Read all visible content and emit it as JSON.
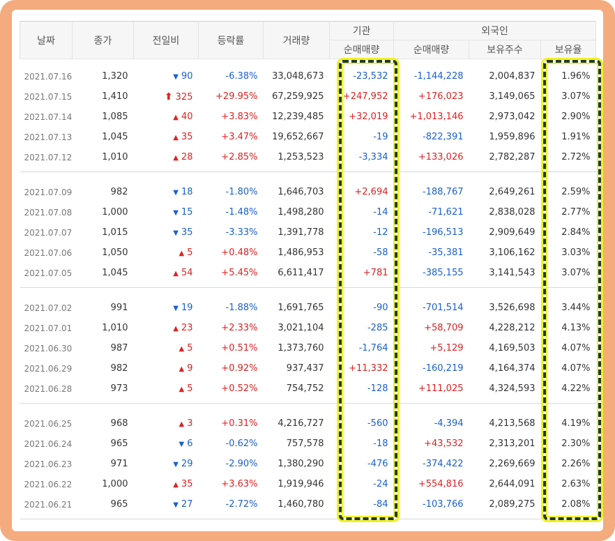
{
  "headers": {
    "date": "날짜",
    "close": "종가",
    "change": "전일비",
    "rate": "등락률",
    "volume": "거래량",
    "institution": "기관",
    "foreign": "외국인",
    "inst_net": "순매매량",
    "foreign_net": "순매매량",
    "foreign_shares": "보유주수",
    "foreign_ratio": "보유율"
  },
  "colors": {
    "up": "#e02020",
    "down": "#1a5fd0",
    "frame": "#f4ab7d",
    "highlight": "#f2f21a"
  },
  "groups": [
    [
      {
        "date": "2021.07.16",
        "close": "1,320",
        "dir": "down",
        "change": "90",
        "rate": "-6.38%",
        "volume": "33,048,673",
        "inst": "-23,532",
        "foreign_net": "-1,144,228",
        "shares": "2,004,837",
        "ratio": "1.96%"
      },
      {
        "date": "2021.07.15",
        "close": "1,410",
        "dir": "limit",
        "change": "325",
        "rate": "+29.95%",
        "volume": "67,259,925",
        "inst": "+247,952",
        "foreign_net": "+176,023",
        "shares": "3,149,065",
        "ratio": "3.07%"
      },
      {
        "date": "2021.07.14",
        "close": "1,085",
        "dir": "up",
        "change": "40",
        "rate": "+3.83%",
        "volume": "12,239,485",
        "inst": "+32,019",
        "foreign_net": "+1,013,146",
        "shares": "2,973,042",
        "ratio": "2.90%"
      },
      {
        "date": "2021.07.13",
        "close": "1,045",
        "dir": "up",
        "change": "35",
        "rate": "+3.47%",
        "volume": "19,652,667",
        "inst": "-19",
        "foreign_net": "-822,391",
        "shares": "1,959,896",
        "ratio": "1.91%"
      },
      {
        "date": "2021.07.12",
        "close": "1,010",
        "dir": "up",
        "change": "28",
        "rate": "+2.85%",
        "volume": "1,253,523",
        "inst": "-3,334",
        "foreign_net": "+133,026",
        "shares": "2,782,287",
        "ratio": "2.72%"
      }
    ],
    [
      {
        "date": "2021.07.09",
        "close": "982",
        "dir": "down",
        "change": "18",
        "rate": "-1.80%",
        "volume": "1,646,703",
        "inst": "+2,694",
        "foreign_net": "-188,767",
        "shares": "2,649,261",
        "ratio": "2.59%"
      },
      {
        "date": "2021.07.08",
        "close": "1,000",
        "dir": "down",
        "change": "15",
        "rate": "-1.48%",
        "volume": "1,498,280",
        "inst": "-14",
        "foreign_net": "-71,621",
        "shares": "2,838,028",
        "ratio": "2.77%"
      },
      {
        "date": "2021.07.07",
        "close": "1,015",
        "dir": "down",
        "change": "35",
        "rate": "-3.33%",
        "volume": "1,391,778",
        "inst": "-12",
        "foreign_net": "-196,513",
        "shares": "2,909,649",
        "ratio": "2.84%"
      },
      {
        "date": "2021.07.06",
        "close": "1,050",
        "dir": "up",
        "change": "5",
        "rate": "+0.48%",
        "volume": "1,486,953",
        "inst": "-58",
        "foreign_net": "-35,381",
        "shares": "3,106,162",
        "ratio": "3.03%"
      },
      {
        "date": "2021.07.05",
        "close": "1,045",
        "dir": "up",
        "change": "54",
        "rate": "+5.45%",
        "volume": "6,611,417",
        "inst": "+781",
        "foreign_net": "-385,155",
        "shares": "3,141,543",
        "ratio": "3.07%"
      }
    ],
    [
      {
        "date": "2021.07.02",
        "close": "991",
        "dir": "down",
        "change": "19",
        "rate": "-1.88%",
        "volume": "1,691,765",
        "inst": "-90",
        "foreign_net": "-701,514",
        "shares": "3,526,698",
        "ratio": "3.44%"
      },
      {
        "date": "2021.07.01",
        "close": "1,010",
        "dir": "up",
        "change": "23",
        "rate": "+2.33%",
        "volume": "3,021,104",
        "inst": "-285",
        "foreign_net": "+58,709",
        "shares": "4,228,212",
        "ratio": "4.13%"
      },
      {
        "date": "2021.06.30",
        "close": "987",
        "dir": "up",
        "change": "5",
        "rate": "+0.51%",
        "volume": "1,373,760",
        "inst": "-1,764",
        "foreign_net": "+5,129",
        "shares": "4,169,503",
        "ratio": "4.07%"
      },
      {
        "date": "2021.06.29",
        "close": "982",
        "dir": "up",
        "change": "9",
        "rate": "+0.92%",
        "volume": "937,437",
        "inst": "+11,332",
        "foreign_net": "-160,219",
        "shares": "4,164,374",
        "ratio": "4.07%"
      },
      {
        "date": "2021.06.28",
        "close": "973",
        "dir": "up",
        "change": "5",
        "rate": "+0.52%",
        "volume": "754,752",
        "inst": "-128",
        "foreign_net": "+111,025",
        "shares": "4,324,593",
        "ratio": "4.22%"
      }
    ],
    [
      {
        "date": "2021.06.25",
        "close": "968",
        "dir": "up",
        "change": "3",
        "rate": "+0.31%",
        "volume": "4,216,727",
        "inst": "-560",
        "foreign_net": "-4,394",
        "shares": "4,213,568",
        "ratio": "4.19%"
      },
      {
        "date": "2021.06.24",
        "close": "965",
        "dir": "down",
        "change": "6",
        "rate": "-0.62%",
        "volume": "757,578",
        "inst": "-18",
        "foreign_net": "+43,532",
        "shares": "2,313,201",
        "ratio": "2.30%"
      },
      {
        "date": "2021.06.23",
        "close": "971",
        "dir": "down",
        "change": "29",
        "rate": "-2.90%",
        "volume": "1,380,290",
        "inst": "-476",
        "foreign_net": "-374,422",
        "shares": "2,269,669",
        "ratio": "2.26%"
      },
      {
        "date": "2021.06.22",
        "close": "1,000",
        "dir": "up",
        "change": "35",
        "rate": "+3.63%",
        "volume": "1,919,946",
        "inst": "-24",
        "foreign_net": "+554,816",
        "shares": "2,644,091",
        "ratio": "2.63%"
      },
      {
        "date": "2021.06.21",
        "close": "965",
        "dir": "down",
        "change": "27",
        "rate": "-2.72%",
        "volume": "1,460,780",
        "inst": "-84",
        "foreign_net": "-103,766",
        "shares": "2,089,275",
        "ratio": "2.08%"
      }
    ]
  ]
}
